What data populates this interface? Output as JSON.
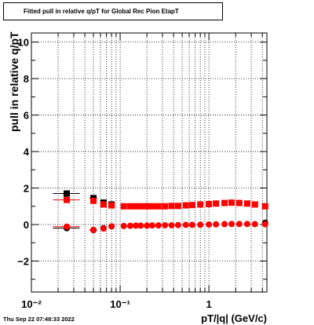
{
  "chart_data": {
    "type": "scatter",
    "title": "Fitted pull in relative q/pT for Global Rec Pion EtapT",
    "xlabel": "pT/|q| (GeV/c)",
    "ylabel": "pull in relative q/pT",
    "x_scale": "log",
    "xlim": [
      0.01,
      4.5
    ],
    "ylim": [
      -3.7,
      10.5
    ],
    "x_ticks": [
      {
        "v": 0.01,
        "label": "10⁻²"
      },
      {
        "v": 0.1,
        "label": "10⁻¹"
      },
      {
        "v": 1,
        "label": "1"
      }
    ],
    "y_ticks": [
      -2,
      0,
      2,
      4,
      6,
      8,
      10
    ],
    "grid": true,
    "series": [
      {
        "color": "#000000",
        "marker": "square",
        "points": [
          [
            0.025,
            1.7
          ],
          [
            0.05,
            1.45
          ],
          [
            0.065,
            1.2
          ],
          [
            0.08,
            1.1
          ]
        ],
        "xerr": [
          [
            0.0175,
            0.035
          ],
          [
            0.045,
            0.055
          ],
          [
            0.06,
            0.07
          ],
          [
            0.075,
            0.085
          ]
        ]
      },
      {
        "color": "#000000",
        "marker": "circle",
        "points": [
          [
            0.025,
            -0.2
          ],
          [
            0.05,
            -0.3
          ],
          [
            0.065,
            -0.2
          ],
          [
            0.08,
            -0.1
          ],
          [
            4.3,
            0.1
          ]
        ],
        "xerr": [
          [
            0.0175,
            0.035
          ],
          [
            0.045,
            0.055
          ],
          [
            0.06,
            0.07
          ],
          [
            0.075,
            0.085
          ],
          [
            4.1,
            4.5
          ]
        ]
      },
      {
        "color": "#ff0000",
        "marker": "square",
        "points": [
          [
            0.025,
            1.35
          ],
          [
            0.05,
            1.3
          ],
          [
            0.065,
            1.1
          ],
          [
            0.08,
            1.05
          ],
          [
            0.11,
            1.0
          ],
          [
            0.13,
            1.0
          ],
          [
            0.15,
            1.0
          ],
          [
            0.17,
            1.0
          ],
          [
            0.2,
            1.0
          ],
          [
            0.23,
            1.0
          ],
          [
            0.27,
            1.0
          ],
          [
            0.32,
            1.0
          ],
          [
            0.38,
            1.02
          ],
          [
            0.45,
            1.02
          ],
          [
            0.55,
            1.05
          ],
          [
            0.65,
            1.07
          ],
          [
            0.8,
            1.1
          ],
          [
            1.0,
            1.12
          ],
          [
            1.2,
            1.15
          ],
          [
            1.5,
            1.18
          ],
          [
            1.8,
            1.2
          ],
          [
            2.2,
            1.18
          ],
          [
            2.7,
            1.15
          ],
          [
            3.3,
            1.1
          ],
          [
            4.3,
            1.0
          ]
        ],
        "xerr": [
          [
            0.0175,
            0.035
          ]
        ]
      },
      {
        "color": "#ff0000",
        "marker": "circle",
        "points": [
          [
            0.025,
            -0.12
          ],
          [
            0.05,
            -0.3
          ],
          [
            0.065,
            -0.22
          ],
          [
            0.08,
            -0.1
          ],
          [
            0.11,
            -0.08
          ],
          [
            0.13,
            -0.07
          ],
          [
            0.15,
            -0.06
          ],
          [
            0.17,
            -0.06
          ],
          [
            0.2,
            -0.06
          ],
          [
            0.23,
            -0.05
          ],
          [
            0.27,
            -0.05
          ],
          [
            0.32,
            -0.04
          ],
          [
            0.38,
            -0.04
          ],
          [
            0.45,
            -0.03
          ],
          [
            0.55,
            -0.02
          ],
          [
            0.65,
            -0.02
          ],
          [
            0.8,
            -0.01
          ],
          [
            1.0,
            0.0
          ],
          [
            1.2,
            0.01
          ],
          [
            1.5,
            0.02
          ],
          [
            1.8,
            0.03
          ],
          [
            2.2,
            0.03
          ],
          [
            2.7,
            0.03
          ],
          [
            3.3,
            0.02
          ],
          [
            4.3,
            0.02
          ]
        ],
        "xerr": [
          [
            0.0175,
            0.035
          ]
        ]
      }
    ]
  },
  "timestamp": "Thu Sep 22 07:48:33 2022"
}
